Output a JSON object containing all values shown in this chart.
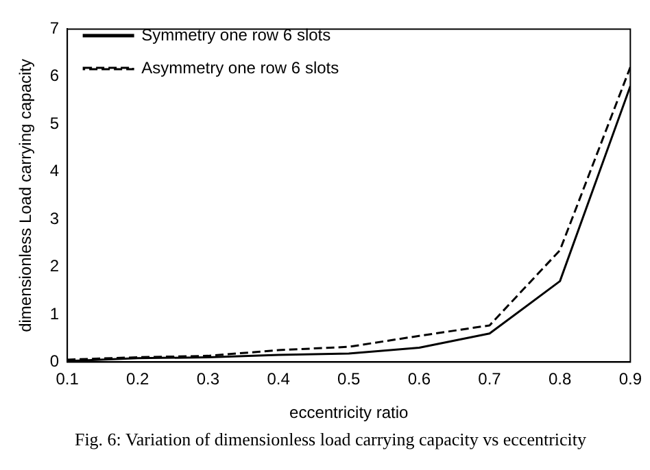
{
  "chart_data": {
    "type": "line",
    "xlabel": "eccentricity ratio",
    "ylabel": "dimensionless Load carrying capacity",
    "annotations": [
      "Fig. 6: Variation of dimensionless load carrying capacity vs eccentricity"
    ],
    "x": [
      0.1,
      0.2,
      0.3,
      0.4,
      0.5,
      0.6,
      0.7,
      0.8,
      0.9
    ],
    "series": [
      {
        "name": "Symmetry one row 6 slots",
        "color": "#000000",
        "line_style": "solid",
        "values": [
          0.02,
          0.08,
          0.1,
          0.15,
          0.18,
          0.3,
          0.6,
          1.7,
          5.8
        ]
      },
      {
        "name": "Asymmetry one row 6 slots",
        "color": "#000000",
        "line_style": "dashed",
        "values": [
          0.05,
          0.1,
          0.13,
          0.25,
          0.32,
          0.55,
          0.77,
          2.35,
          6.2
        ]
      }
    ],
    "xlim": [
      0.1,
      0.9
    ],
    "ylim": [
      0,
      7
    ],
    "xticks": [
      0.1,
      0.2,
      0.3,
      0.4,
      0.5,
      0.6,
      0.7,
      0.8,
      0.9
    ],
    "yticks": [
      0,
      1,
      2,
      3,
      4,
      5,
      6,
      7
    ],
    "grid": false,
    "legend": "top left",
    "marker": "none"
  }
}
